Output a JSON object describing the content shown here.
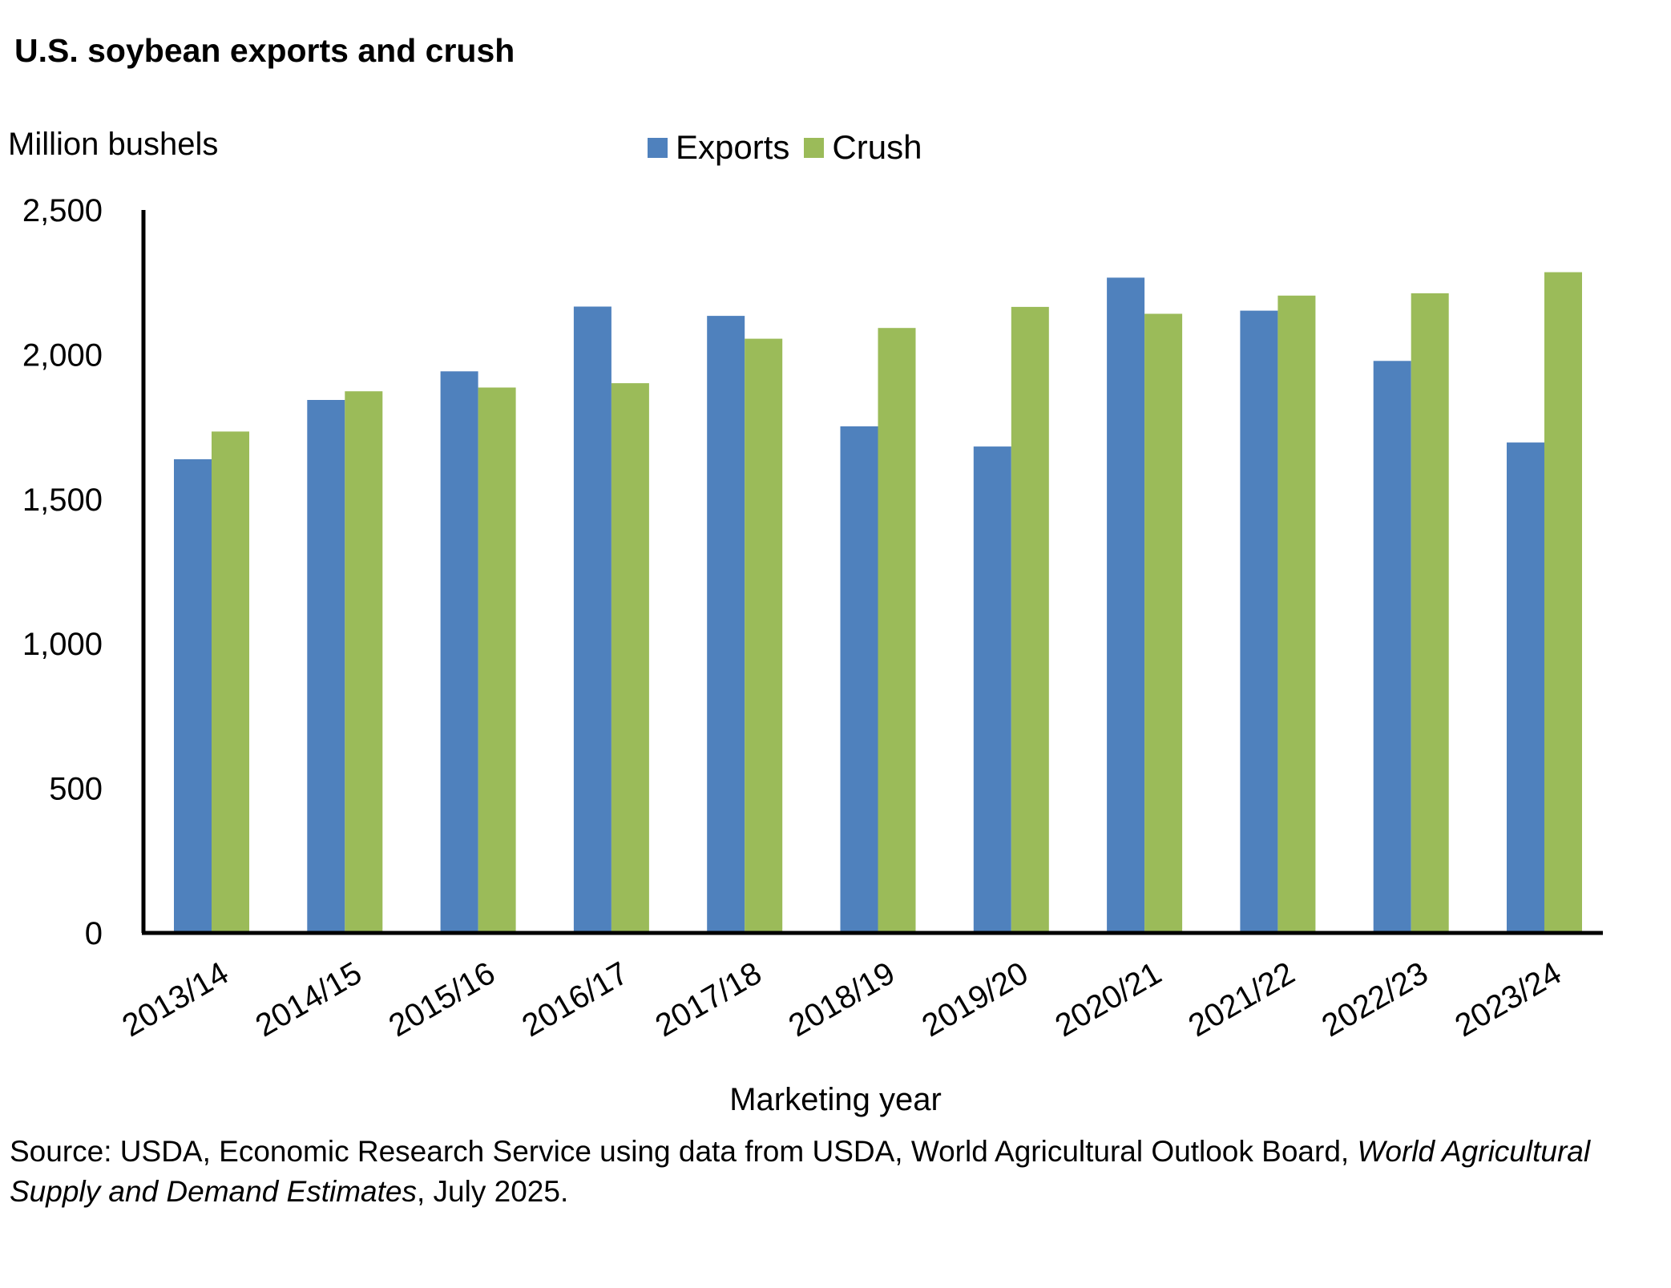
{
  "chart_data": {
    "type": "bar",
    "title": "U.S. soybean exports and crush",
    "ylabel": "Million bushels",
    "xlabel": "Marketing year",
    "categories": [
      "2013/14",
      "2014/15",
      "2015/16",
      "2016/17",
      "2017/18",
      "2018/19",
      "2019/20",
      "2020/21",
      "2021/22",
      "2022/23",
      "2023/24"
    ],
    "series": [
      {
        "name": "Exports",
        "color": "#4F81BD",
        "values": [
          1638,
          1843,
          1942,
          2166,
          2134,
          1752,
          1682,
          2266,
          2152,
          1978,
          1696
        ]
      },
      {
        "name": "Crush",
        "color": "#9BBB59",
        "values": [
          1734,
          1873,
          1886,
          1901,
          2055,
          2092,
          2165,
          2141,
          2204,
          2212,
          2285
        ]
      }
    ],
    "ylim": [
      0,
      2500
    ],
    "yticks": [
      0,
      500,
      1000,
      1500,
      2000,
      2500
    ],
    "ytick_labels": [
      "0",
      "500",
      "1,000",
      "1,500",
      "2,000",
      "2,500"
    ],
    "grid": false,
    "legend_position": "top-center"
  },
  "source": {
    "prefix": "Source: USDA, Economic Research Service using data from USDA, World Agricultural Outlook Board, ",
    "italic": "World Agricultural Supply and Demand Estimates",
    "suffix": ", July 2025."
  }
}
